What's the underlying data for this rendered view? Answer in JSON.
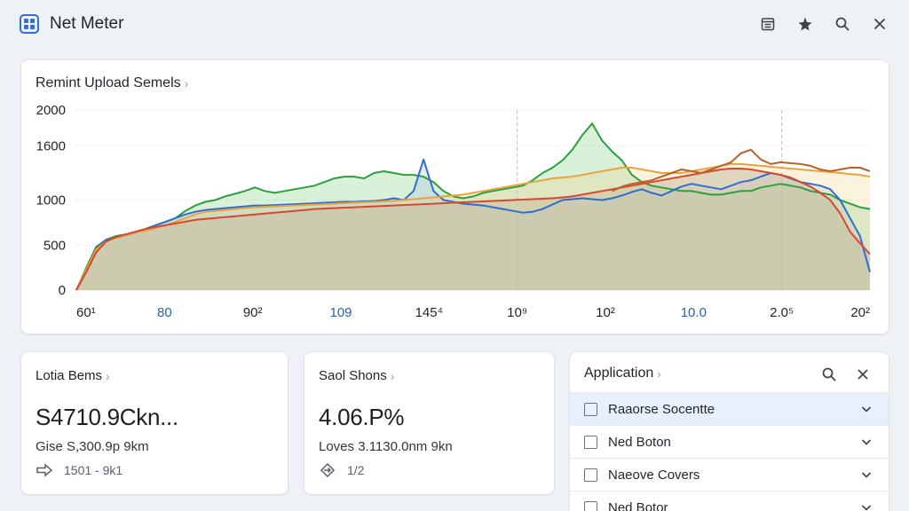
{
  "window": {
    "title": "Net Meter"
  },
  "chart_panel": {
    "title": "Remint Upload Semels"
  },
  "chart_data": {
    "type": "area",
    "title": "Remint Upload Semels",
    "xlabel": "",
    "ylabel": "",
    "ylim": [
      0,
      2000
    ],
    "y_ticks": [
      "2000",
      "1600",
      "1000",
      "500",
      "0"
    ],
    "x_tick_labels": [
      "60¹",
      "80",
      "90²",
      "109",
      "145⁴",
      "10⁹",
      "10²",
      "10.0",
      "2.0⁵",
      "20²"
    ],
    "grid": true,
    "colors": {
      "green": "#2e9e3e",
      "blue": "#2d6fd0",
      "orange": "#e9a53a",
      "red": "#d9472e",
      "brown": "#b8632b",
      "fill": "#d8d2bd"
    },
    "x": [
      0,
      1,
      2,
      3,
      4,
      5,
      6,
      7,
      8,
      9,
      10,
      11,
      12,
      13,
      14,
      15,
      16,
      17,
      18,
      19,
      20,
      21,
      22,
      23,
      24,
      25,
      26,
      27,
      28,
      29,
      30,
      31,
      32,
      33,
      34,
      35,
      36,
      37,
      38,
      39,
      40,
      41,
      42,
      43,
      44,
      45,
      46,
      47,
      48,
      49,
      50,
      51,
      52,
      53,
      54,
      55,
      56,
      57,
      58,
      59,
      60,
      61,
      62,
      63,
      64,
      65,
      66,
      67,
      68,
      69,
      70,
      71,
      72,
      73,
      74,
      75,
      76,
      77,
      78,
      79,
      80
    ],
    "series": [
      {
        "name": "",
        "color": "#2e9e3e",
        "values": [
          0,
          250,
          480,
          560,
          600,
          620,
          640,
          680,
          720,
          760,
          800,
          880,
          940,
          980,
          1000,
          1040,
          1070,
          1100,
          1140,
          1100,
          1080,
          1100,
          1120,
          1140,
          1160,
          1200,
          1240,
          1260,
          1260,
          1240,
          1300,
          1320,
          1300,
          1280,
          1280,
          1260,
          1200,
          1100,
          1040,
          1020,
          1040,
          1080,
          1100,
          1120,
          1140,
          1160,
          1220,
          1300,
          1360,
          1440,
          1560,
          1720,
          1850,
          1660,
          1540,
          1440,
          1280,
          1200,
          1160,
          1140,
          1120,
          1100,
          1100,
          1080,
          1060,
          1060,
          1080,
          1100,
          1100,
          1140,
          1160,
          1180,
          1160,
          1140,
          1100,
          1080,
          1060,
          1000,
          960,
          920,
          900
        ]
      },
      {
        "name": "",
        "color": "#2d6fd0",
        "values": [
          0,
          220,
          460,
          560,
          580,
          610,
          640,
          680,
          720,
          760,
          800,
          840,
          870,
          890,
          900,
          910,
          920,
          930,
          940,
          940,
          945,
          950,
          955,
          960,
          965,
          970,
          975,
          980,
          980,
          985,
          990,
          1000,
          1020,
          1000,
          1100,
          1450,
          1100,
          1000,
          980,
          960,
          950,
          940,
          920,
          900,
          880,
          860,
          870,
          900,
          950,
          1000,
          1010,
          1020,
          1010,
          1000,
          1020,
          1050,
          1090,
          1120,
          1080,
          1050,
          1100,
          1150,
          1180,
          1160,
          1140,
          1120,
          1160,
          1200,
          1220,
          1260,
          1300,
          1280,
          1240,
          1200,
          1180,
          1160,
          1120,
          1000,
          800,
          600,
          200
        ]
      },
      {
        "name": "",
        "color": "#e9a53a",
        "values": [
          0,
          230,
          450,
          540,
          580,
          610,
          640,
          660,
          690,
          720,
          760,
          800,
          840,
          870,
          880,
          890,
          900,
          910,
          920,
          925,
          930,
          935,
          940,
          945,
          950,
          955,
          960,
          965,
          970,
          975,
          980,
          985,
          990,
          1000,
          1010,
          1020,
          1030,
          1040,
          1050,
          1060,
          1080,
          1100,
          1120,
          1140,
          1160,
          1180,
          1200,
          1220,
          1240,
          1250,
          1260,
          1280,
          1300,
          1320,
          1340,
          1360,
          1360,
          1340,
          1320,
          1300,
          1300,
          1300,
          1320,
          1340,
          1360,
          1380,
          1400,
          1400,
          1390,
          1380,
          1370,
          1360,
          1350,
          1340,
          1330,
          1320,
          1310,
          1300,
          1290,
          1280,
          1260
        ]
      },
      {
        "name": "",
        "color": "#d9472e",
        "values": [
          0,
          200,
          420,
          540,
          590,
          620,
          650,
          680,
          700,
          720,
          740,
          760,
          780,
          790,
          800,
          810,
          820,
          830,
          840,
          850,
          860,
          870,
          880,
          890,
          900,
          905,
          910,
          915,
          920,
          925,
          930,
          935,
          940,
          945,
          950,
          955,
          960,
          965,
          970,
          975,
          980,
          985,
          990,
          995,
          1000,
          1005,
          1010,
          1015,
          1020,
          1030,
          1040,
          1060,
          1080,
          1100,
          1120,
          1140,
          1160,
          1180,
          1200,
          1220,
          1240,
          1260,
          1280,
          1300,
          1320,
          1340,
          1350,
          1350,
          1340,
          1320,
          1300,
          1280,
          1250,
          1200,
          1150,
          1080,
          1000,
          850,
          650,
          520,
          400
        ]
      },
      {
        "name": "",
        "color": "#b8632b",
        "values": [
          null,
          null,
          null,
          null,
          null,
          null,
          null,
          null,
          null,
          null,
          null,
          null,
          null,
          null,
          null,
          null,
          null,
          null,
          null,
          null,
          null,
          null,
          null,
          null,
          null,
          null,
          null,
          null,
          null,
          null,
          null,
          null,
          null,
          null,
          null,
          null,
          null,
          null,
          null,
          null,
          null,
          null,
          null,
          null,
          null,
          null,
          null,
          null,
          null,
          null,
          null,
          null,
          null,
          null,
          1100,
          1150,
          1180,
          1200,
          1220,
          1260,
          1300,
          1340,
          1320,
          1300,
          1340,
          1380,
          1420,
          1520,
          1560,
          1450,
          1400,
          1420,
          1410,
          1400,
          1380,
          1340,
          1320,
          1340,
          1360,
          1360,
          1320
        ]
      }
    ]
  },
  "stat_cards": [
    {
      "label": "Lotia Bems",
      "value": "S4710.9Ckn...",
      "sub": "Gise S,300.9p 9km",
      "foot": "1501 - 9k1",
      "foot_icon": "arrow-right-icon"
    },
    {
      "label": "Saol Shons",
      "value": "4.06.P%",
      "sub": "Loves 3.1130.0nm 9kn",
      "foot": "1/2",
      "foot_icon": "diamond-arrow-icon"
    }
  ],
  "application_panel": {
    "title": "Application",
    "items": [
      {
        "label": "Raaorse Socentte",
        "active": true
      },
      {
        "label": "Ned Boton",
        "active": false
      },
      {
        "label": "Naeove Covers",
        "active": false
      },
      {
        "label": "Ned Botor",
        "active": false
      }
    ]
  },
  "accent": "#2f6fd6"
}
